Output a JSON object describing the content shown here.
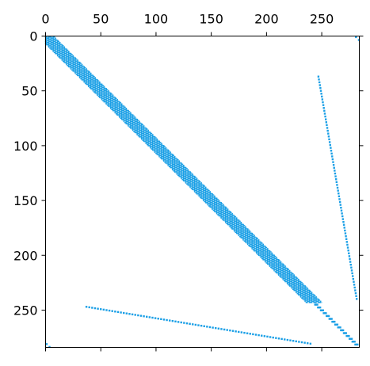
{
  "chart_data": {
    "type": "spy",
    "matrix_size": 284,
    "x_axis_position": "top",
    "y_axis_inverted": true,
    "xlim": [
      0,
      284
    ],
    "ylim": [
      284,
      0
    ],
    "x_ticks": [
      0,
      50,
      100,
      150,
      200,
      250
    ],
    "y_ticks": [
      0,
      50,
      100,
      150,
      200,
      250
    ],
    "grid": false,
    "marker_color": "#1a9fe6",
    "dense_band_color": "#a9dcf3",
    "segments": [
      {
        "name": "main-diagonal-band",
        "from": [
          1,
          1
        ],
        "to": [
          243,
          243
        ],
        "half_width": 7,
        "density": "dense"
      },
      {
        "name": "main-diagonal-tail",
        "from": [
          245,
          245
        ],
        "to": [
          284,
          284
        ],
        "half_width": 1,
        "density": "dotted"
      },
      {
        "name": "upper-right-line",
        "from": [
          247,
          37
        ],
        "to": [
          282,
          242
        ],
        "half_width": 0,
        "density": "dotted"
      },
      {
        "name": "lower-left-line",
        "from": [
          37,
          247
        ],
        "to": [
          242,
          281
        ],
        "half_width": 0,
        "density": "dotted"
      },
      {
        "name": "top-right-corner",
        "from": [
          281,
          1
        ],
        "to": [
          284,
          4
        ],
        "half_width": 0,
        "density": "dotted"
      },
      {
        "name": "bottom-left-corner",
        "from": [
          1,
          281
        ],
        "to": [
          4,
          284
        ],
        "half_width": 0,
        "density": "dotted"
      }
    ]
  }
}
